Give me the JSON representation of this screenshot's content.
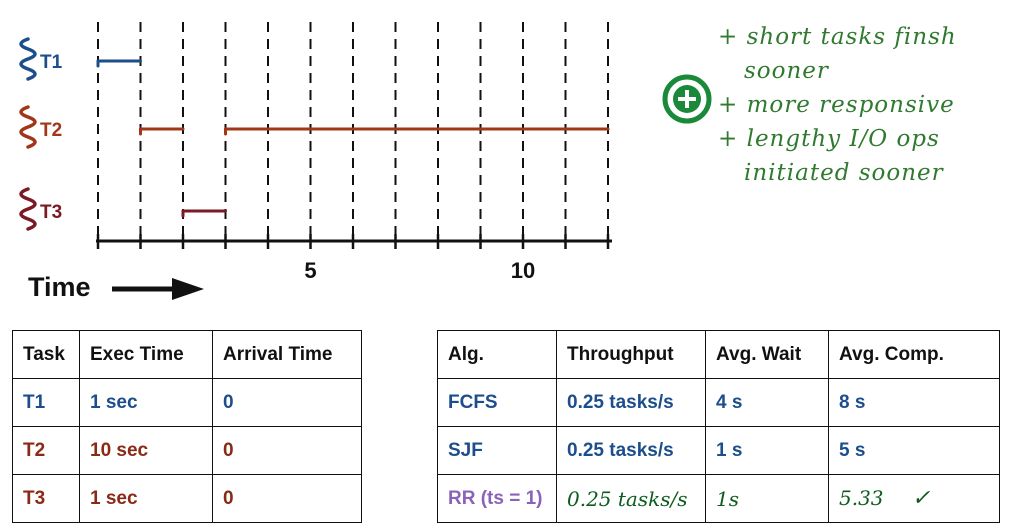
{
  "timeline": {
    "tasks": [
      {
        "label": "T1",
        "color": "#1d4e8c"
      },
      {
        "label": "T2",
        "color": "#a13618"
      },
      {
        "label": "T3",
        "color": "#7a1a24"
      }
    ],
    "segments": [
      {
        "task": "T1",
        "start": 0,
        "end": 1
      },
      {
        "task": "T2",
        "start": 1,
        "end": 2
      },
      {
        "task": "T3",
        "start": 2,
        "end": 3
      },
      {
        "task": "T2",
        "start": 3,
        "end": 12
      }
    ],
    "axis_min": 0,
    "axis_max": 12,
    "tick_labels": [
      {
        "value": 5,
        "text": "5"
      },
      {
        "value": 10,
        "text": "10"
      }
    ],
    "time_label": "Time"
  },
  "notes": {
    "badge_color": "#1a8a3a",
    "lines": [
      "+ short tasks finsh",
      "sooner",
      "+ more responsive",
      "+ lengthy I/O ops",
      "initiated sooner"
    ]
  },
  "task_table": {
    "headers": [
      "Task",
      "Exec Time",
      "Arrival Time"
    ],
    "rows": [
      {
        "task": "T1",
        "exec": "1 sec",
        "arrival": "0"
      },
      {
        "task": "T2",
        "exec": "10 sec",
        "arrival": "0"
      },
      {
        "task": "T3",
        "exec": "1 sec",
        "arrival": "0"
      }
    ]
  },
  "alg_table": {
    "headers": [
      "Alg.",
      "Throughput",
      "Avg. Wait",
      "Avg. Comp."
    ],
    "rows": [
      {
        "alg": "FCFS",
        "throughput": "0.25 tasks/s",
        "wait": "4 s",
        "comp": "8 s"
      },
      {
        "alg": "SJF",
        "throughput": "0.25 tasks/s",
        "wait": "1 s",
        "comp": "5 s"
      },
      {
        "alg": "RR (ts = 1)",
        "throughput": "0.25 tasks/s",
        "wait": "1s",
        "comp": "5.33",
        "mark": "✓"
      }
    ]
  }
}
